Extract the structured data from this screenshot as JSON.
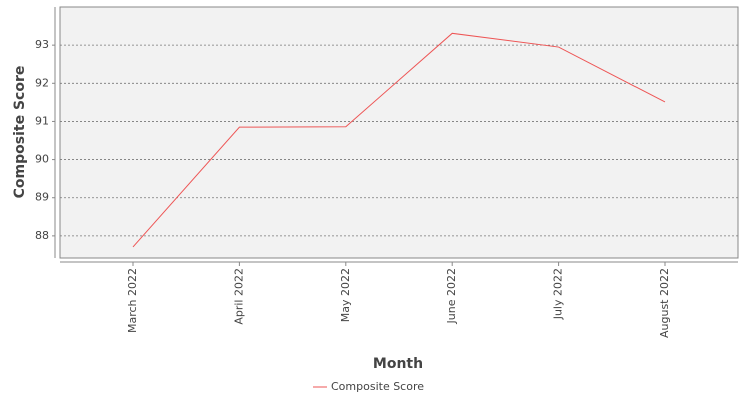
{
  "chart_data": {
    "type": "line",
    "categories": [
      "March 2022",
      "April 2022",
      "May 2022",
      "June 2022",
      "July 2022",
      "August 2022"
    ],
    "series": [
      {
        "name": "Composite Score",
        "color": "#ee5555",
        "values": [
          87.71,
          90.85,
          90.86,
          93.31,
          92.95,
          91.51
        ]
      }
    ],
    "x_label": "Month",
    "y_label": "Composite Score",
    "ylim": [
      87.42,
      94.0
    ],
    "yticks": [
      88,
      89,
      90,
      91,
      92,
      93
    ],
    "grid": true,
    "legend": "bottom"
  }
}
